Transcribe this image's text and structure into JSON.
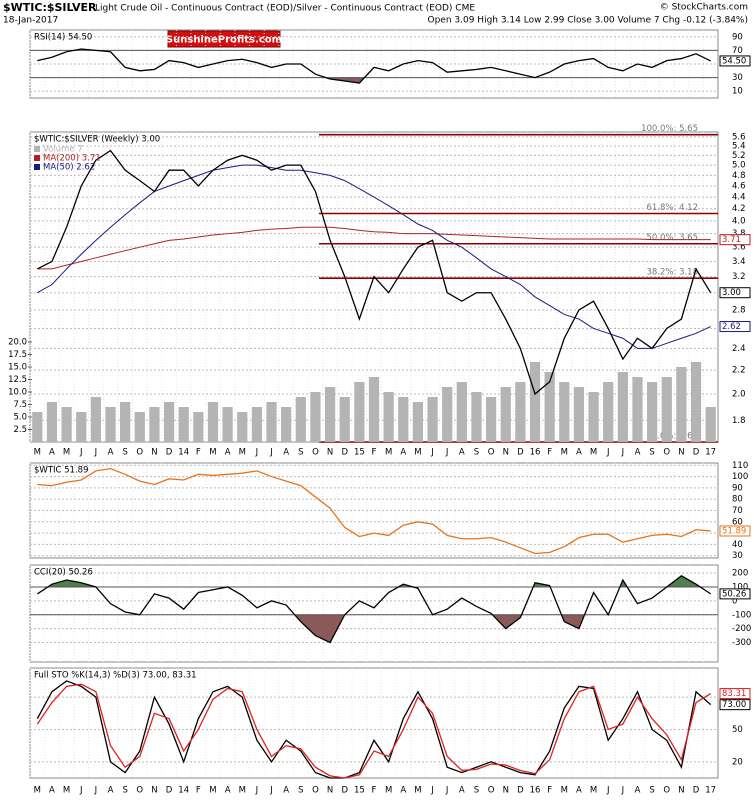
{
  "header": {
    "symbol": "$WTIC:$SILVER",
    "description": "Light Crude Oil - Continuous Contract (EOD)/Silver - Continuous Contract (EOD) CME",
    "date": "18-Jan-2017",
    "quote": "Open 3.09 High 3.14 Low 2.99 Close 3.00 Volume 7 Chg -0.12 (-3.84%)",
    "copyright": "© StockCharts.com",
    "watermark": "SunshineProfits.com"
  },
  "chart_data": [
    {
      "type": "line",
      "title": "RSI(14) 54.50",
      "ylim": [
        0,
        100
      ],
      "yticks": [
        10,
        30,
        50,
        70,
        90
      ],
      "grid": true,
      "bands": {
        "upper": 70,
        "lower": 30,
        "upper_color": "#4f7f4f",
        "lower_color": "#8a5a5a"
      },
      "series": [
        {
          "name": null,
          "color": "#000000",
          "last_label": "54.50",
          "values": [
            55,
            60,
            68,
            72,
            70,
            68,
            45,
            40,
            42,
            55,
            52,
            45,
            50,
            55,
            57,
            52,
            45,
            50,
            50,
            35,
            28,
            25,
            22,
            45,
            40,
            50,
            55,
            52,
            38,
            40,
            42,
            45,
            40,
            35,
            30,
            38,
            50,
            55,
            58,
            45,
            40,
            50,
            45,
            55,
            58,
            65,
            54.5
          ]
        }
      ]
    },
    {
      "type": "line",
      "title": "$WTIC:$SILVER (Weekly) 3.00",
      "log": true,
      "ylim": [
        1.65,
        5.71
      ],
      "grid": true,
      "categories": [
        "M",
        "A",
        "M",
        "J",
        "J",
        "A",
        "S",
        "O",
        "N",
        "D",
        "14",
        "F",
        "M",
        "A",
        "M",
        "J",
        "J",
        "A",
        "S",
        "O",
        "N",
        "D",
        "15",
        "F",
        "M",
        "A",
        "M",
        "J",
        "J",
        "A",
        "S",
        "O",
        "N",
        "D",
        "16",
        "F",
        "M",
        "A",
        "M",
        "J",
        "J",
        "A",
        "S",
        "O",
        "N",
        "D",
        "17"
      ],
      "yticks": [
        1.8,
        {
          "value": 2.0,
          "label": "2.0"
        },
        2.2,
        2.4,
        2.6,
        2.8,
        {
          "value": 3.0,
          "label": "3.0"
        },
        3.2,
        3.4,
        3.6,
        3.8,
        {
          "value": 4.0,
          "label": "4.0"
        },
        4.2,
        4.4,
        4.6,
        4.8,
        {
          "value": 5.0,
          "label": "5.0"
        },
        5.2,
        5.4,
        5.6
      ],
      "y2lim": [
        0,
        62
      ],
      "y2ticks": [
        2.5,
        {
          "value": 5,
          "label": "5.0"
        },
        7.5,
        {
          "value": 10,
          "label": "10.0"
        },
        12.5,
        {
          "value": 15,
          "label": "15.0"
        },
        17.5,
        {
          "value": 20,
          "label": "20.0"
        }
      ],
      "levels": [
        {
          "value": 5.65,
          "label": "100.0%: 5.65"
        },
        {
          "value": 4.12,
          "label": "61.8%: 4.12"
        },
        {
          "value": 3.65,
          "label": "50.0%: 3.65"
        },
        {
          "value": 3.18,
          "label": "38.2%: 3.18"
        },
        {
          "value": 1.65,
          "label": "0.0%: 1.65"
        }
      ],
      "levels_color": "#8b0000",
      "series": [
        {
          "name": "Volume 7",
          "type": "bar",
          "axis": "y2",
          "color": "#b4b4b4",
          "values": [
            6,
            8,
            7,
            6,
            9,
            7,
            8,
            6,
            7,
            8,
            7,
            6,
            8,
            7,
            6,
            7,
            8,
            7,
            9,
            10,
            11,
            9,
            12,
            13,
            10,
            9,
            8,
            9,
            11,
            12,
            10,
            9,
            11,
            12,
            16,
            14,
            12,
            11,
            10,
            12,
            14,
            13,
            12,
            13,
            15,
            16,
            7
          ]
        },
        {
          "name": "MA(200) 3.71",
          "color": "#b22222",
          "last_label": "3.71",
          "values": [
            3.3,
            3.3,
            3.35,
            3.4,
            3.45,
            3.5,
            3.55,
            3.6,
            3.65,
            3.7,
            3.72,
            3.75,
            3.78,
            3.8,
            3.82,
            3.85,
            3.87,
            3.88,
            3.9,
            3.9,
            3.9,
            3.88,
            3.85,
            3.83,
            3.82,
            3.8,
            3.8,
            3.8,
            3.79,
            3.78,
            3.77,
            3.76,
            3.75,
            3.74,
            3.73,
            3.72,
            3.72,
            3.72,
            3.72,
            3.72,
            3.72,
            3.72,
            3.71,
            3.71,
            3.71,
            3.71,
            3.71
          ]
        },
        {
          "name": "MA(50) 2.62",
          "color": "#1a1a80",
          "last_label": "2.62",
          "values": [
            3.0,
            3.1,
            3.3,
            3.5,
            3.7,
            3.9,
            4.1,
            4.3,
            4.5,
            4.6,
            4.7,
            4.8,
            4.9,
            4.95,
            5.0,
            5.0,
            4.95,
            4.9,
            4.9,
            4.85,
            4.8,
            4.7,
            4.55,
            4.4,
            4.25,
            4.1,
            3.95,
            3.85,
            3.7,
            3.6,
            3.45,
            3.3,
            3.2,
            3.1,
            2.95,
            2.85,
            2.75,
            2.7,
            2.6,
            2.55,
            2.5,
            2.4,
            2.4,
            2.45,
            2.5,
            2.55,
            2.62
          ]
        },
        {
          "name": null,
          "color": "#000000",
          "last_label": "3.00",
          "values": [
            3.3,
            3.4,
            3.9,
            4.6,
            5.1,
            5.3,
            4.9,
            4.7,
            4.5,
            4.9,
            4.9,
            4.6,
            4.9,
            5.1,
            5.2,
            5.1,
            4.9,
            5.0,
            5.0,
            4.5,
            3.7,
            3.2,
            2.7,
            3.2,
            3.0,
            3.3,
            3.6,
            3.7,
            3.0,
            2.9,
            3.0,
            3.0,
            2.7,
            2.4,
            2.0,
            2.1,
            2.5,
            2.8,
            2.9,
            2.6,
            2.3,
            2.5,
            2.4,
            2.6,
            2.7,
            3.3,
            3.0
          ]
        }
      ]
    },
    {
      "type": "line",
      "title": "$WTIC 51.89",
      "ylim": [
        28,
        112
      ],
      "yticks": [
        30,
        40,
        50,
        60,
        70,
        80,
        90,
        100,
        110
      ],
      "grid": true,
      "series": [
        {
          "name": null,
          "color": "#e8731a",
          "last_label": "51.89",
          "values": [
            93,
            92,
            95,
            97,
            105,
            107,
            102,
            96,
            93,
            98,
            97,
            102,
            101,
            102,
            103,
            105,
            100,
            96,
            92,
            82,
            72,
            55,
            47,
            50,
            48,
            57,
            60,
            58,
            48,
            45,
            45,
            46,
            42,
            37,
            32,
            33,
            38,
            46,
            49,
            49,
            42,
            45,
            48,
            49,
            47,
            53,
            51.89
          ]
        }
      ]
    },
    {
      "type": "line",
      "title": "CCI(20) 50.26",
      "ylim": [
        -440,
        258
      ],
      "yticks": [
        -300,
        -200,
        -100,
        0,
        100,
        200
      ],
      "grid": true,
      "bands": {
        "upper": 100,
        "lower": -100,
        "upper_color": "#4f7f4f",
        "lower_color": "#8a5a5a"
      },
      "series": [
        {
          "name": null,
          "color": "#000000",
          "last_label": "50.26",
          "values": [
            50,
            120,
            150,
            130,
            100,
            -20,
            -80,
            -100,
            50,
            20,
            -60,
            60,
            80,
            100,
            40,
            -50,
            0,
            -30,
            -150,
            -250,
            -300,
            -100,
            0,
            -50,
            60,
            120,
            90,
            -100,
            -60,
            20,
            -40,
            -90,
            -200,
            -120,
            130,
            110,
            -150,
            -200,
            60,
            -100,
            150,
            -20,
            20,
            100,
            180,
            120,
            50.26
          ]
        }
      ]
    },
    {
      "type": "line",
      "title": "Full STO %K(14,3) %D(3) 73.00, 83.31",
      "ylim": [
        5,
        107
      ],
      "yticks": [
        20,
        50,
        80
      ],
      "grid": true,
      "series": [
        {
          "name": null,
          "color": "#000000",
          "last_label": "73.00",
          "values": [
            60,
            85,
            95,
            90,
            80,
            20,
            10,
            30,
            80,
            55,
            20,
            60,
            85,
            90,
            80,
            40,
            20,
            40,
            30,
            10,
            5,
            5,
            10,
            40,
            20,
            60,
            85,
            60,
            15,
            10,
            15,
            20,
            15,
            10,
            8,
            30,
            70,
            90,
            88,
            40,
            60,
            85,
            50,
            40,
            15,
            85,
            73
          ]
        },
        {
          "name": null,
          "color": "#e02020",
          "last_label": "83.31",
          "values": [
            55,
            75,
            90,
            92,
            85,
            35,
            15,
            25,
            65,
            60,
            30,
            50,
            78,
            88,
            85,
            50,
            25,
            35,
            32,
            15,
            7,
            5,
            8,
            30,
            25,
            50,
            80,
            65,
            25,
            12,
            13,
            18,
            17,
            12,
            9,
            22,
            60,
            85,
            90,
            50,
            55,
            80,
            60,
            45,
            22,
            75,
            83.31
          ]
        }
      ]
    }
  ]
}
